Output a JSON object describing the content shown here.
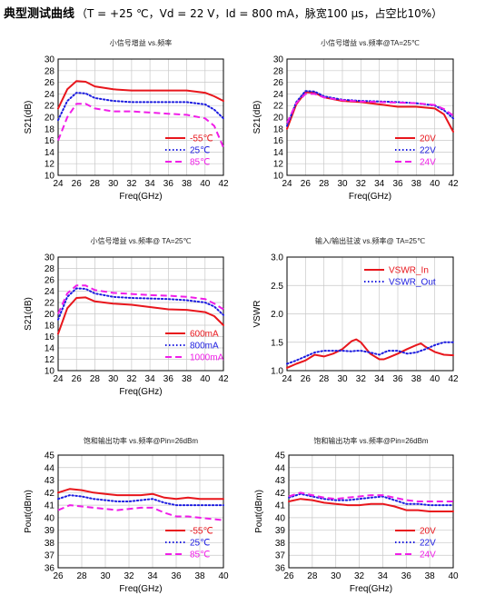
{
  "header": {
    "title": "典型测试曲线",
    "spec": "（T = +25 ℃，Vd = 22 V，Id = 800 mA，脉宽100 μs，占空比10%）"
  },
  "chart_data": [
    {
      "type": "line",
      "title": "小信号增益 vs.频率",
      "xlabel": "Freq(GHz)",
      "ylabel": "S21(dB)",
      "xlim": [
        24,
        42
      ],
      "ylim": [
        10,
        30
      ],
      "xticks": [
        24,
        26,
        28,
        30,
        32,
        34,
        36,
        38,
        40,
        42
      ],
      "yticks": [
        10,
        12,
        14,
        16,
        18,
        20,
        22,
        24,
        26,
        28,
        30
      ],
      "grid": true,
      "legend_position": "bottom-right",
      "x": [
        24,
        25,
        26,
        27,
        28,
        30,
        32,
        34,
        36,
        38,
        40,
        41,
        42
      ],
      "series": [
        {
          "name": "-55℃",
          "color": "#e8161c",
          "style": "solid",
          "values": [
            21.5,
            24.8,
            26.2,
            26.1,
            25.3,
            24.8,
            24.6,
            24.6,
            24.6,
            24.6,
            24.2,
            23.6,
            22.8
          ]
        },
        {
          "name": "25℃",
          "color": "#1c1ce0",
          "style": "dotted",
          "values": [
            19.5,
            22.8,
            24.2,
            24.1,
            23.3,
            22.8,
            22.6,
            22.6,
            22.6,
            22.6,
            22.2,
            21.3,
            19.8
          ]
        },
        {
          "name": "85℃",
          "color": "#f01ee8",
          "style": "dashed",
          "values": [
            16.0,
            20.0,
            22.3,
            22.3,
            21.5,
            21.0,
            21.0,
            20.8,
            20.6,
            20.4,
            19.8,
            18.5,
            14.8
          ]
        }
      ]
    },
    {
      "type": "line",
      "title": "小信号增益 vs.频率@TA=25℃",
      "xlabel": "Freq(GHz)",
      "ylabel": "S21(dB)",
      "xlim": [
        24,
        42
      ],
      "ylim": [
        10,
        30
      ],
      "xticks": [
        24,
        26,
        28,
        30,
        32,
        34,
        36,
        38,
        40,
        42
      ],
      "yticks": [
        10,
        12,
        14,
        16,
        18,
        20,
        22,
        24,
        26,
        28,
        30
      ],
      "grid": true,
      "legend_position": "bottom-right",
      "x": [
        24,
        25,
        26,
        27,
        28,
        30,
        32,
        34,
        36,
        38,
        40,
        41,
        42
      ],
      "series": [
        {
          "name": "20V",
          "color": "#e8161c",
          "style": "solid",
          "values": [
            18.0,
            22.2,
            24.3,
            24.2,
            23.4,
            22.8,
            22.6,
            22.2,
            21.8,
            21.8,
            21.5,
            20.5,
            17.5
          ]
        },
        {
          "name": "22V",
          "color": "#1c1ce0",
          "style": "dotted",
          "values": [
            18.5,
            22.6,
            24.5,
            24.4,
            23.6,
            23.0,
            22.8,
            22.7,
            22.6,
            22.4,
            22.0,
            21.2,
            19.8
          ]
        },
        {
          "name": "24V",
          "color": "#f01ee8",
          "style": "dashed",
          "values": [
            19.0,
            22.4,
            24.0,
            24.0,
            23.4,
            22.9,
            22.7,
            22.6,
            22.5,
            22.4,
            22.1,
            21.4,
            20.3
          ]
        }
      ]
    },
    {
      "type": "line",
      "title": "小信号增益 vs.频率@ TA=25℃",
      "xlabel": "Freq(GHz)",
      "ylabel": "S21(dB)",
      "xlim": [
        24,
        42
      ],
      "ylim": [
        10,
        30
      ],
      "xticks": [
        24,
        26,
        28,
        30,
        32,
        34,
        36,
        38,
        40,
        42
      ],
      "yticks": [
        10,
        12,
        14,
        16,
        18,
        20,
        22,
        24,
        26,
        28,
        30
      ],
      "grid": true,
      "legend_position": "bottom-right",
      "x": [
        24,
        25,
        26,
        27,
        28,
        30,
        32,
        34,
        36,
        38,
        40,
        41,
        42
      ],
      "series": [
        {
          "name": "600mA",
          "color": "#e8161c",
          "style": "solid",
          "values": [
            16.5,
            21.0,
            22.8,
            22.9,
            22.2,
            21.8,
            21.6,
            21.2,
            20.8,
            20.7,
            20.3,
            19.6,
            18.0
          ]
        },
        {
          "name": "800mA",
          "color": "#1c1ce0",
          "style": "dotted",
          "values": [
            19.0,
            23.0,
            24.5,
            24.4,
            23.6,
            23.0,
            22.8,
            22.7,
            22.6,
            22.4,
            22.0,
            21.3,
            19.8
          ]
        },
        {
          "name": "1000mA",
          "color": "#f01ee8",
          "style": "dashed",
          "values": [
            20.0,
            23.6,
            25.0,
            25.0,
            24.2,
            23.7,
            23.5,
            23.3,
            23.2,
            23.0,
            22.6,
            21.8,
            20.8
          ]
        }
      ]
    },
    {
      "type": "line",
      "title": "输入/输出驻波 vs.频率@ TA=25℃",
      "xlabel": "",
      "ylabel": "VSWR",
      "xlim": [
        24,
        42
      ],
      "ylim": [
        1.0,
        3.0
      ],
      "xticks": [
        24,
        26,
        28,
        30,
        32,
        34,
        36,
        38,
        40,
        42
      ],
      "yticks": [
        1.0,
        1.5,
        2.0,
        2.5,
        3.0
      ],
      "grid": true,
      "legend_position": "top-right",
      "x": [
        24,
        25,
        26,
        27,
        28,
        29,
        30,
        31,
        31.5,
        32,
        33,
        34,
        34.5,
        35,
        36,
        37,
        38,
        38.5,
        39,
        40,
        41,
        42
      ],
      "series": [
        {
          "name": "VSWR_In",
          "color": "#e8161c",
          "style": "solid",
          "values": [
            1.05,
            1.12,
            1.18,
            1.28,
            1.25,
            1.3,
            1.38,
            1.52,
            1.55,
            1.5,
            1.3,
            1.2,
            1.2,
            1.23,
            1.3,
            1.38,
            1.45,
            1.48,
            1.42,
            1.33,
            1.28,
            1.27
          ]
        },
        {
          "name": "VSWR_Out",
          "color": "#1c1ce0",
          "style": "dotted",
          "values": [
            1.12,
            1.18,
            1.25,
            1.32,
            1.35,
            1.35,
            1.35,
            1.34,
            1.35,
            1.35,
            1.32,
            1.28,
            1.32,
            1.35,
            1.35,
            1.3,
            1.32,
            1.35,
            1.38,
            1.45,
            1.5,
            1.5
          ]
        }
      ]
    },
    {
      "type": "line",
      "title": "饱和输出功率 vs.频率@Pin=26dBm",
      "xlabel": "Freq(GHz)",
      "ylabel": "Pout(dBm)",
      "xlim": [
        26,
        40
      ],
      "ylim": [
        36,
        45
      ],
      "xticks": [
        26,
        28,
        30,
        32,
        34,
        36,
        38,
        40
      ],
      "yticks": [
        36,
        37,
        38,
        39,
        40,
        41,
        42,
        43,
        44,
        45
      ],
      "grid": true,
      "legend_position": "bottom-right",
      "x": [
        26,
        27,
        28,
        29,
        30,
        31,
        32,
        33,
        34,
        35,
        36,
        37,
        38,
        39,
        40
      ],
      "series": [
        {
          "name": "-55℃",
          "color": "#e8161c",
          "style": "solid",
          "values": [
            42.0,
            42.3,
            42.2,
            42.0,
            41.9,
            41.8,
            41.8,
            41.8,
            41.9,
            41.6,
            41.5,
            41.6,
            41.5,
            41.5,
            41.5
          ]
        },
        {
          "name": "25℃",
          "color": "#1c1ce0",
          "style": "dotted",
          "values": [
            41.5,
            41.8,
            41.7,
            41.5,
            41.4,
            41.3,
            41.3,
            41.4,
            41.5,
            41.2,
            41.0,
            41.0,
            41.0,
            41.0,
            41.0
          ]
        },
        {
          "name": "85℃",
          "color": "#f01ee8",
          "style": "dashed",
          "values": [
            40.6,
            41.0,
            40.9,
            40.8,
            40.7,
            40.6,
            40.7,
            40.8,
            40.8,
            40.4,
            40.1,
            40.1,
            40.0,
            39.9,
            39.8
          ]
        }
      ]
    },
    {
      "type": "line",
      "title": "饱和输出功率 vs.频率@Pin=26dBm",
      "xlabel": "Freq(GHz)",
      "ylabel": "Pout(dBm)",
      "xlim": [
        26,
        40
      ],
      "ylim": [
        36,
        45
      ],
      "xticks": [
        26,
        28,
        30,
        32,
        34,
        36,
        38,
        40
      ],
      "yticks": [
        36,
        37,
        38,
        39,
        40,
        41,
        42,
        43,
        44,
        45
      ],
      "grid": true,
      "legend_position": "bottom-right",
      "x": [
        26,
        27,
        28,
        29,
        30,
        31,
        32,
        33,
        34,
        35,
        36,
        37,
        38,
        39,
        40
      ],
      "series": [
        {
          "name": "20V",
          "color": "#e8161c",
          "style": "solid",
          "values": [
            41.3,
            41.5,
            41.4,
            41.2,
            41.1,
            41.0,
            41.0,
            41.1,
            41.1,
            40.9,
            40.6,
            40.6,
            40.5,
            40.5,
            40.5
          ]
        },
        {
          "name": "22V",
          "color": "#1c1ce0",
          "style": "dotted",
          "values": [
            41.6,
            41.9,
            41.7,
            41.5,
            41.4,
            41.4,
            41.5,
            41.6,
            41.7,
            41.4,
            41.1,
            41.1,
            41.0,
            41.0,
            41.0
          ]
        },
        {
          "name": "24V",
          "color": "#f01ee8",
          "style": "dashed",
          "values": [
            41.7,
            42.0,
            41.8,
            41.6,
            41.5,
            41.6,
            41.7,
            41.8,
            41.8,
            41.6,
            41.4,
            41.3,
            41.3,
            41.3,
            41.3
          ]
        }
      ]
    }
  ]
}
